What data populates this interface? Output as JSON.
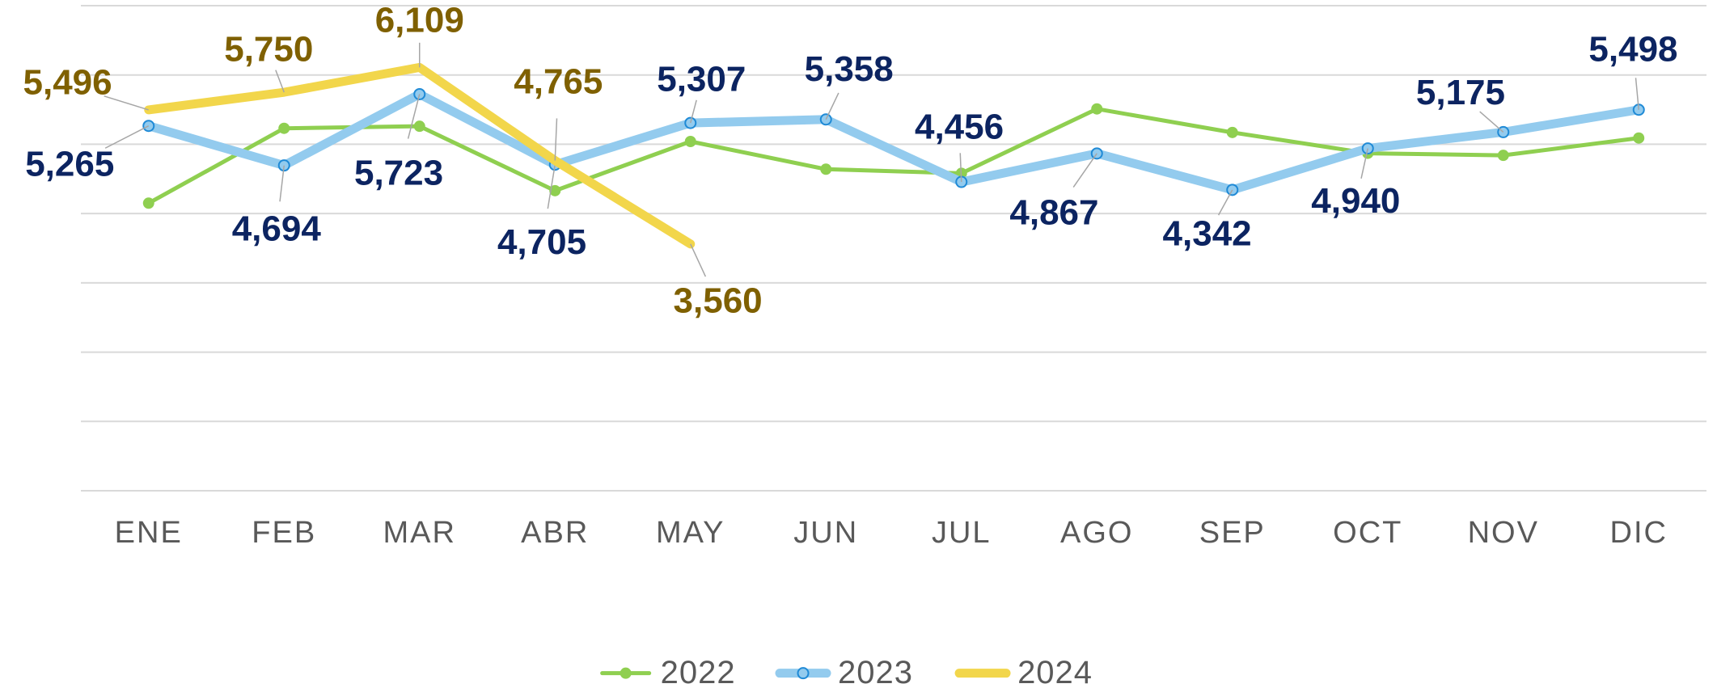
{
  "chart_data": {
    "type": "line",
    "categories": [
      "ENE",
      "FEB",
      "MAR",
      "ABR",
      "MAY",
      "JUN",
      "JUL",
      "AGO",
      "SEP",
      "OCT",
      "NOV",
      "DIC"
    ],
    "ylim": [
      0,
      7000
    ],
    "yticks": [
      0,
      1000,
      2000,
      3000,
      4000,
      5000,
      6000,
      7000
    ],
    "grid": true,
    "legend": "bottom",
    "series": [
      {
        "name": "2022",
        "color": "#8fcf50",
        "marker_color": "#8fcf50",
        "marker_stroke": "#8fcf50",
        "values": [
          4150,
          5230,
          5260,
          4330,
          5040,
          4640,
          4580,
          5510,
          5170,
          4870,
          4840,
          5090
        ]
      },
      {
        "name": "2023",
        "color": "#93cbee",
        "marker_color": "#93cbee",
        "marker_stroke": "#1f8ad6",
        "label_color": "#0c2461",
        "values": [
          5265,
          4694,
          5723,
          4705,
          5307,
          5358,
          4456,
          4867,
          4342,
          4940,
          5175,
          5498
        ],
        "value_labels": [
          "5,265",
          "4,694",
          "5,723",
          "4,705",
          "5,307",
          "5,358",
          "4,456",
          "4,867",
          "4,342",
          "4,940",
          "5,175",
          "5,498"
        ]
      },
      {
        "name": "2024",
        "color": "#f2d64b",
        "label_color": "#7f6000",
        "values": [
          5496,
          5750,
          6109,
          4765,
          3560,
          null,
          null,
          null,
          null,
          null,
          null,
          null
        ],
        "value_labels": [
          "5,496",
          "5,750",
          "6,109",
          "4,765",
          "3,560",
          null,
          null,
          null,
          null,
          null,
          null,
          null
        ]
      }
    ]
  }
}
